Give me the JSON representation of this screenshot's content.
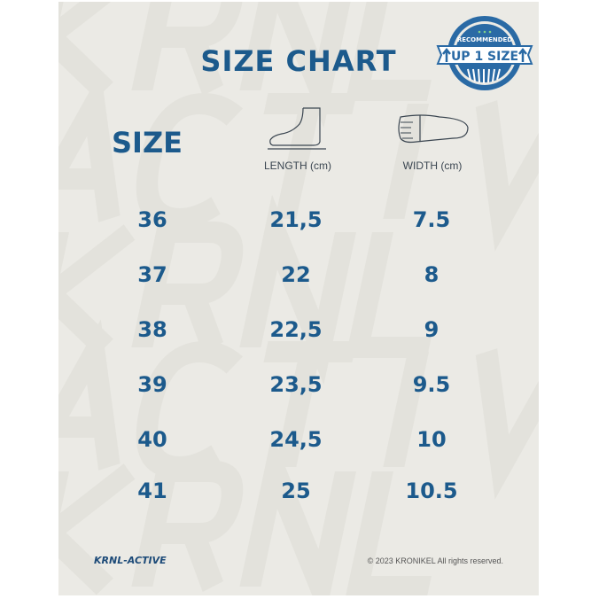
{
  "title": "SIZE CHART",
  "badge": {
    "top_text": "RECOMMENDED",
    "main_text": "UP 1 SIZE"
  },
  "watermark": [
    "KRNL",
    "ACTIVE",
    "KRNL",
    "ACTIVE"
  ],
  "headers": {
    "size": "SIZE",
    "length": "LENGTH (cm)",
    "width": "WIDTH (cm)",
    "length_icon": "foot-side-icon",
    "width_icon": "foot-sole-icon"
  },
  "rows": [
    {
      "size": "36",
      "length": "21,5",
      "width": "7.5"
    },
    {
      "size": "37",
      "length": "22",
      "width": "8"
    },
    {
      "size": "38",
      "length": "22,5",
      "width": "9"
    },
    {
      "size": "39",
      "length": "23,5",
      "width": "9.5"
    },
    {
      "size": "40",
      "length": "24,5",
      "width": "10"
    },
    {
      "size": "41",
      "length": "25",
      "width": "10.5"
    }
  ],
  "footer": {
    "brand": "KRNL-ACTIVE",
    "copyright": "© 2023 KRONIKEL All rights reserved."
  },
  "colors": {
    "primary": "#1c5a8c",
    "background": "#ebeae5"
  }
}
